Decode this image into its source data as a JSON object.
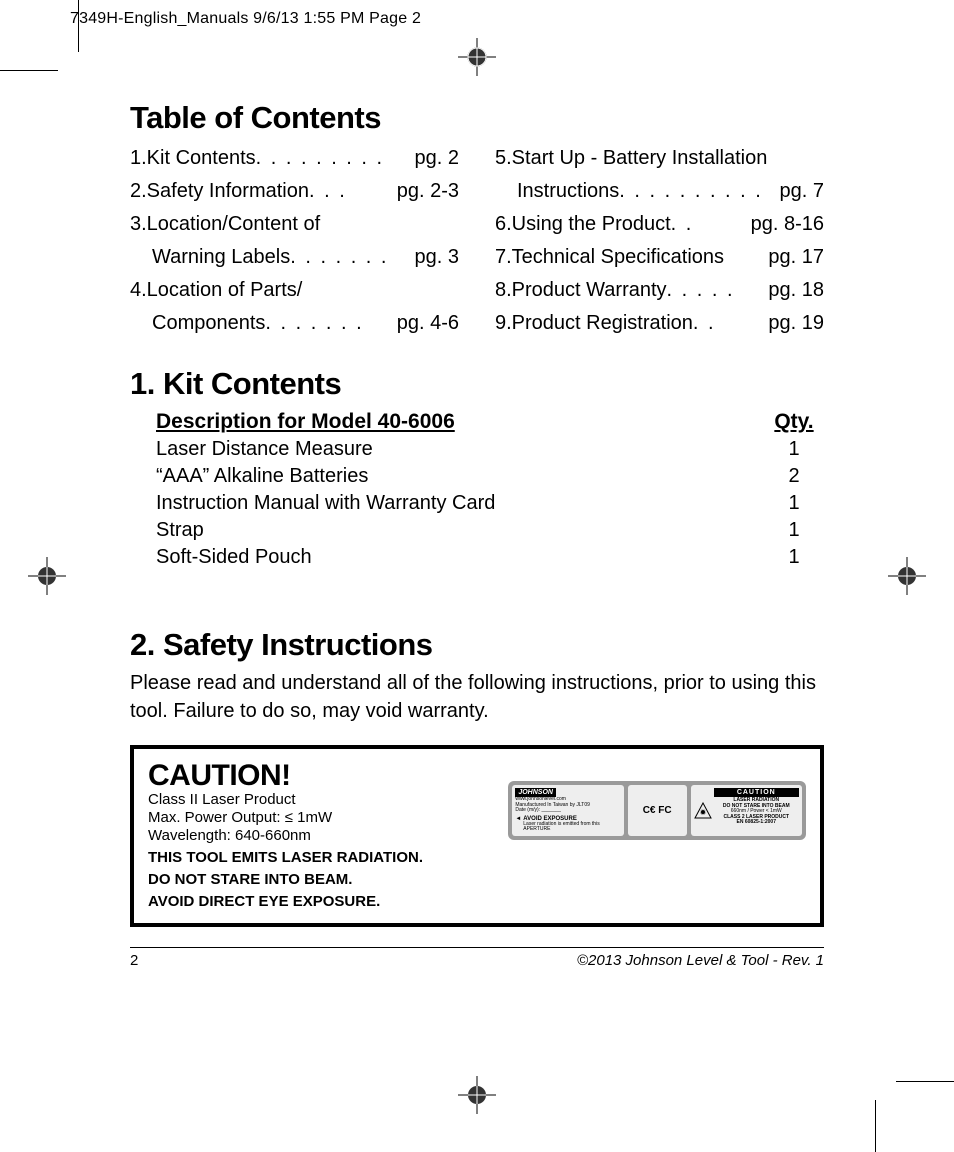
{
  "header": {
    "slug": "7349H-English_Manuals  9/6/13  1:55 PM  Page 2"
  },
  "toc": {
    "heading": "Table of Contents",
    "left": [
      {
        "t": "1.Kit Contents",
        "pg": "pg. 2",
        "dots": " . . . . . . . . . "
      },
      {
        "t": "2.Safety Information",
        "pg": "pg. 2-3",
        "dots": " . . . "
      },
      {
        "t": "3.Location/Content of",
        "nopg": true
      },
      {
        "t": "Warning Labels",
        "pg": "pg. 3",
        "dots": " . . . . . . . ",
        "sub": true
      },
      {
        "t": "4.Location of Parts/",
        "nopg": true
      },
      {
        "t": "Components",
        "pg": "pg. 4-6",
        "dots": " . . . . . . . ",
        "sub": true
      }
    ],
    "right": [
      {
        "t": "5.Start Up - Battery Installation",
        "nopg": true
      },
      {
        "t": "Instructions",
        "pg": "pg. 7",
        "dots": " . . . . . . . . . . ",
        "sub": true
      },
      {
        "t": "6.Using the Product",
        "pg": "pg. 8-16",
        "dots": " . . "
      },
      {
        "t": "7.Technical Specifications",
        "pg": "pg. 17",
        "dots": " "
      },
      {
        "t": "8.Product Warranty",
        "pg": "pg. 18",
        "dots": ". . . . . "
      },
      {
        "t": "9.Product Registration",
        "pg": "pg. 19",
        "dots": " . . "
      }
    ]
  },
  "kit": {
    "heading": "1. Kit Contents",
    "head_desc": "Description for Model 40-6006",
    "head_qty": "Qty.",
    "rows": [
      {
        "d": "Laser Distance Measure",
        "q": "1"
      },
      {
        "d": "“AAA” Alkaline Batteries",
        "q": "2"
      },
      {
        "d": "Instruction Manual with Warranty Card",
        "q": "1"
      },
      {
        "d": "Strap",
        "q": "1"
      },
      {
        "d": "Soft-Sided Pouch",
        "q": "1"
      }
    ]
  },
  "safety": {
    "heading": "2. Safety Instructions",
    "body": "Please read and understand all of the following instructions, prior to using this tool. Failure to do so, may void warranty."
  },
  "caution": {
    "title": "CAUTION!",
    "line1": "Class II Laser Product",
    "line2": "Max. Power Output:  ≤ 1mW",
    "line3": "Wavelength:  640-660nm",
    "warn1": "THIS TOOL EMITS LASER RADIATION.",
    "warn2": "DO NOT STARE INTO BEAM.",
    "warn3": "AVOID DIRECT EYE EXPOSURE.",
    "label": {
      "brand": "JOHNSON",
      "url": "www.johnsonlevel.com",
      "mfg": "Manufactured In Taiwan by JLT09",
      "date": "Date (m/y):",
      "avoid_title": "AVOID EXPOSURE",
      "avoid_sub": "Laser radiation is emitted from this APERTURE",
      "cefc": "€ € FC",
      "badge": "CAUTION",
      "rad1": "LASER RADIATION",
      "rad2": "DO NOT STARE INTO BEAM",
      "rad3": "660nm / Power < 1mW",
      "rad4": "CLASS 2 LASER PRODUCT",
      "rad5": "EN 60825-1:2007"
    }
  },
  "footer": {
    "page_no": "2",
    "copyright": "©2013 Johnson Level & Tool - Rev. 1"
  }
}
